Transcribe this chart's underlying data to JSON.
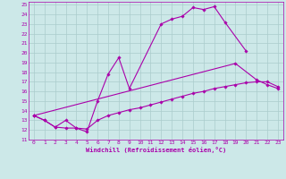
{
  "xlabel": "Windchill (Refroidissement éolien,°C)",
  "bg_color": "#cce8e8",
  "grid_color": "#aacccc",
  "line_color": "#aa00aa",
  "xlim": [
    -0.5,
    23.5
  ],
  "ylim": [
    11,
    25.3
  ],
  "xticks": [
    0,
    1,
    2,
    3,
    4,
    5,
    6,
    7,
    8,
    9,
    10,
    11,
    12,
    13,
    14,
    15,
    16,
    17,
    18,
    19,
    20,
    21,
    22,
    23
  ],
  "yticks": [
    11,
    12,
    13,
    14,
    15,
    16,
    17,
    18,
    19,
    20,
    21,
    22,
    23,
    24,
    25
  ],
  "series": [
    {
      "x": [
        0,
        1,
        2,
        3,
        4,
        5,
        6,
        7,
        8,
        9,
        12,
        13,
        14,
        15,
        16,
        17,
        18,
        20
      ],
      "y": [
        13.5,
        13.0,
        12.3,
        13.0,
        12.2,
        11.8,
        15.0,
        17.8,
        19.5,
        16.3,
        23.0,
        23.5,
        23.8,
        24.7,
        24.5,
        24.8,
        23.2,
        20.2
      ]
    },
    {
      "x": [
        0,
        1,
        2,
        3,
        4,
        5,
        6,
        7,
        8,
        9,
        10,
        11,
        12,
        13,
        14,
        15,
        16,
        17,
        18,
        19,
        20,
        21,
        22,
        23
      ],
      "y": [
        13.5,
        13.0,
        12.3,
        12.2,
        12.2,
        12.1,
        13.0,
        13.5,
        13.8,
        14.1,
        14.3,
        14.6,
        14.9,
        15.2,
        15.5,
        15.8,
        16.0,
        16.3,
        16.5,
        16.7,
        16.9,
        17.0,
        17.0,
        16.5
      ]
    },
    {
      "x": [
        0,
        19,
        21,
        22,
        23
      ],
      "y": [
        13.5,
        18.9,
        17.2,
        16.7,
        16.3
      ]
    }
  ]
}
